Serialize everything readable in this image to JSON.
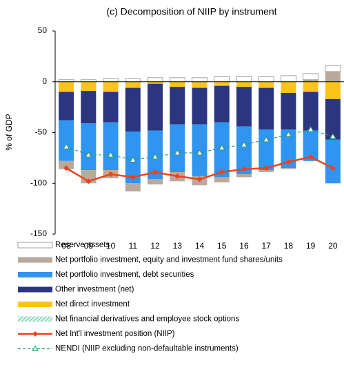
{
  "chart_data": {
    "type": "bar",
    "title": "(c) Decomposition of NIIP by instrument",
    "y_label": "% of GDP",
    "categories": [
      "08",
      "09",
      "10",
      "11",
      "12",
      "13",
      "14",
      "15",
      "16",
      "17",
      "18",
      "19",
      "20"
    ],
    "ylim": [
      -150,
      50
    ],
    "yticks": [
      -150,
      -100,
      -50,
      0,
      50
    ],
    "series": [
      {
        "name": "Reserve assets",
        "type": "bar",
        "color": "#ffffff",
        "values": [
          2,
          2,
          3,
          3,
          4,
          4,
          4,
          5,
          5,
          5,
          6,
          6,
          6
        ]
      },
      {
        "name": "Net portfolio investment, equity and investment fund shares/units",
        "type": "bar",
        "color": "#b8a99c",
        "values": [
          -8,
          -13,
          -8,
          -8,
          -5,
          -9,
          -9,
          -5,
          -3,
          -2,
          -1,
          2,
          10
        ]
      },
      {
        "name": "Net portfolio investment, debt securities",
        "type": "bar",
        "color": "#2f95f0",
        "values": [
          -40,
          -46,
          -47,
          -51,
          -48,
          -47,
          -51,
          -54,
          -47,
          -40,
          -38,
          -30,
          -43
        ]
      },
      {
        "name": "Other investment (net)",
        "type": "bar",
        "color": "#2b3580",
        "values": [
          -28,
          -32,
          -30,
          -43,
          -46,
          -37,
          -36,
          -36,
          -39,
          -41,
          -36,
          -38,
          -40
        ]
      },
      {
        "name": "Net direct investment",
        "type": "bar",
        "color": "#fcc419",
        "values": [
          -10,
          -9,
          -10,
          -6,
          -2,
          -5,
          -6,
          -4,
          -5,
          -6,
          -11,
          -10,
          -17
        ]
      },
      {
        "name": "Net financial derivatives and employee stock options",
        "type": "bar",
        "color": "#7fd6b0",
        "values": [
          0,
          0,
          0,
          0,
          0,
          0,
          0,
          0,
          0,
          0,
          0,
          0,
          0
        ]
      },
      {
        "name": "Net Int'l investment position (NIIP)",
        "type": "line",
        "color": "#f0411c",
        "values": [
          -85,
          -98,
          -91,
          -94,
          -89,
          -93,
          -96,
          -89,
          -86,
          -85,
          -79,
          -74,
          -85
        ]
      },
      {
        "name": "NENDI (NIIP excluding non-defaultable instruments)",
        "type": "line",
        "color": "#2a9a7a",
        "values": [
          -64,
          -72,
          -72,
          -77,
          -74,
          -70,
          -70,
          -65,
          -62,
          -57,
          -52,
          -47,
          -54
        ]
      }
    ]
  }
}
